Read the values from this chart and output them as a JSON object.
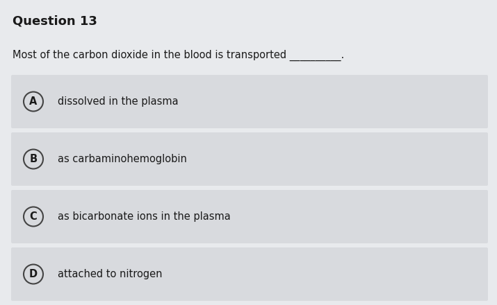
{
  "title": "Question 13",
  "question": "Most of the carbon dioxide in the blood is transported",
  "options": [
    {
      "label": "A",
      "text": "dissolved in the plasma"
    },
    {
      "label": "B",
      "text": "as carbaminohemoglobin"
    },
    {
      "label": "C",
      "text": "as bicarbonate ions in the plasma"
    },
    {
      "label": "D",
      "text": "attached to nitrogen"
    }
  ],
  "bg_color": "#e8eaed",
  "option_bg_color": "#d8dade",
  "title_color": "#1a1a1a",
  "question_color": "#1a1a1a",
  "option_text_color": "#1a1a1a",
  "circle_edge_color": "#444444",
  "circle_face_color": "#d8dade",
  "title_fontsize": 13,
  "question_fontsize": 10.5,
  "option_fontsize": 10.5,
  "fig_width": 7.15,
  "fig_height": 4.4,
  "dpi": 100
}
